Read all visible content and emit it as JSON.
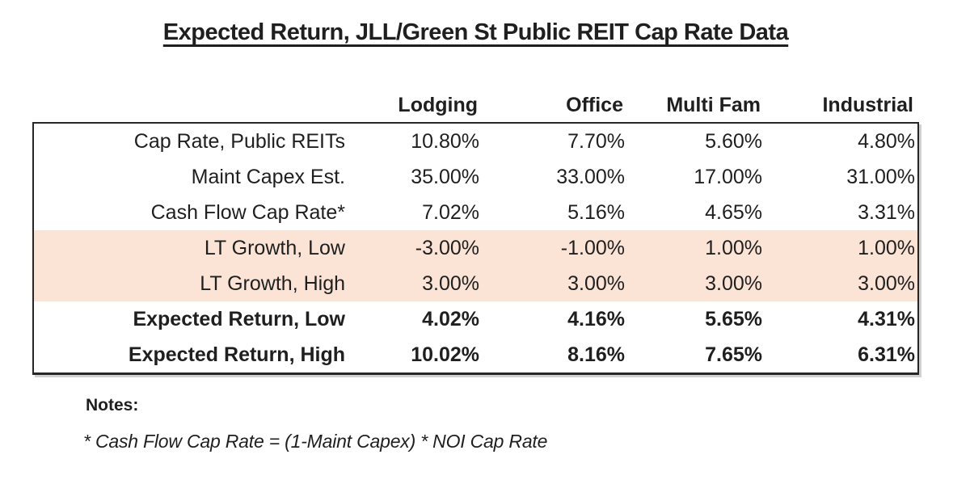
{
  "title": "Expected Return, JLL/Green St Public REIT Cap Rate Data",
  "chart_data": {
    "type": "table",
    "title": "Expected Return, JLL/Green St Public REIT Cap Rate Data",
    "columns": [
      "Lodging",
      "Office",
      "Multi Fam",
      "Industrial"
    ],
    "rows": [
      {
        "label": "Cap Rate, Public REITs",
        "values": [
          "10.80%",
          "7.70%",
          "5.60%",
          "4.80%"
        ],
        "style": "normal"
      },
      {
        "label": "Maint Capex Est.",
        "values": [
          "35.00%",
          "33.00%",
          "17.00%",
          "31.00%"
        ],
        "style": "normal"
      },
      {
        "label": "Cash Flow Cap Rate*",
        "values": [
          "7.02%",
          "5.16%",
          "4.65%",
          "3.31%"
        ],
        "style": "normal"
      },
      {
        "label": "LT Growth, Low",
        "values": [
          "-3.00%",
          "-1.00%",
          "1.00%",
          "1.00%"
        ],
        "style": "highlight"
      },
      {
        "label": "LT Growth, High",
        "values": [
          "3.00%",
          "3.00%",
          "3.00%",
          "3.00%"
        ],
        "style": "highlight"
      },
      {
        "label": "Expected Return, Low",
        "values": [
          "4.02%",
          "4.16%",
          "5.65%",
          "4.31%"
        ],
        "style": "bold"
      },
      {
        "label": "Expected Return, High",
        "values": [
          "10.02%",
          "8.16%",
          "7.65%",
          "6.31%"
        ],
        "style": "bold"
      }
    ],
    "layout_hints": {
      "value_alignment": "right",
      "highlight_row_indices": [
        3,
        4
      ],
      "bold_row_indices": [
        5,
        6
      ],
      "gridlines": "outer-border-only",
      "header_outside_border": true
    }
  },
  "notes": {
    "heading": "Notes:",
    "footnote": "* Cash Flow Cap Rate = (1-Maint Capex) * NOI Cap Rate"
  },
  "colors": {
    "highlight_fill": "#fbe3d6",
    "border": "#262626",
    "text": "#1f1f1f",
    "background": "#ffffff"
  }
}
